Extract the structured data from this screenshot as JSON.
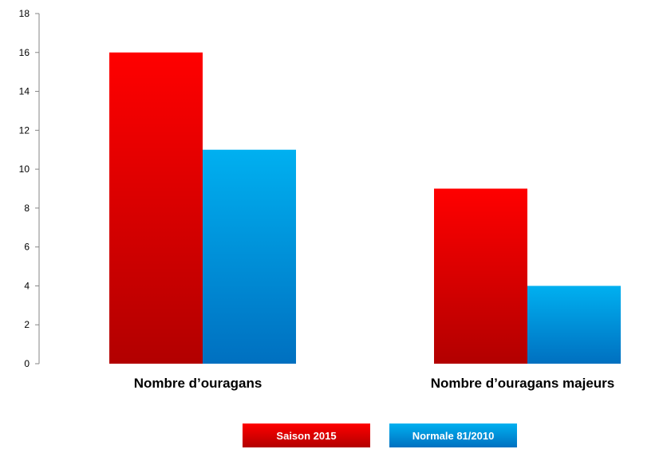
{
  "chart_data": {
    "type": "bar",
    "categories": [
      "Nombre d’ouragans",
      "Nombre d’ouragans majeurs"
    ],
    "series": [
      {
        "name": "Saison 2015",
        "values": [
          16,
          9
        ],
        "color_top": "#ff0000",
        "color_bottom": "#b20000"
      },
      {
        "name": "Normale 81/2010",
        "values": [
          11,
          4
        ],
        "color_top": "#00b0f0",
        "color_bottom": "#0070c0"
      }
    ],
    "ylim": [
      0,
      18
    ],
    "yticks": [
      0,
      2,
      4,
      6,
      8,
      10,
      12,
      14,
      16,
      18
    ],
    "title": "",
    "xlabel": "",
    "ylabel": "",
    "grid": false,
    "legend_position": "bottom"
  }
}
